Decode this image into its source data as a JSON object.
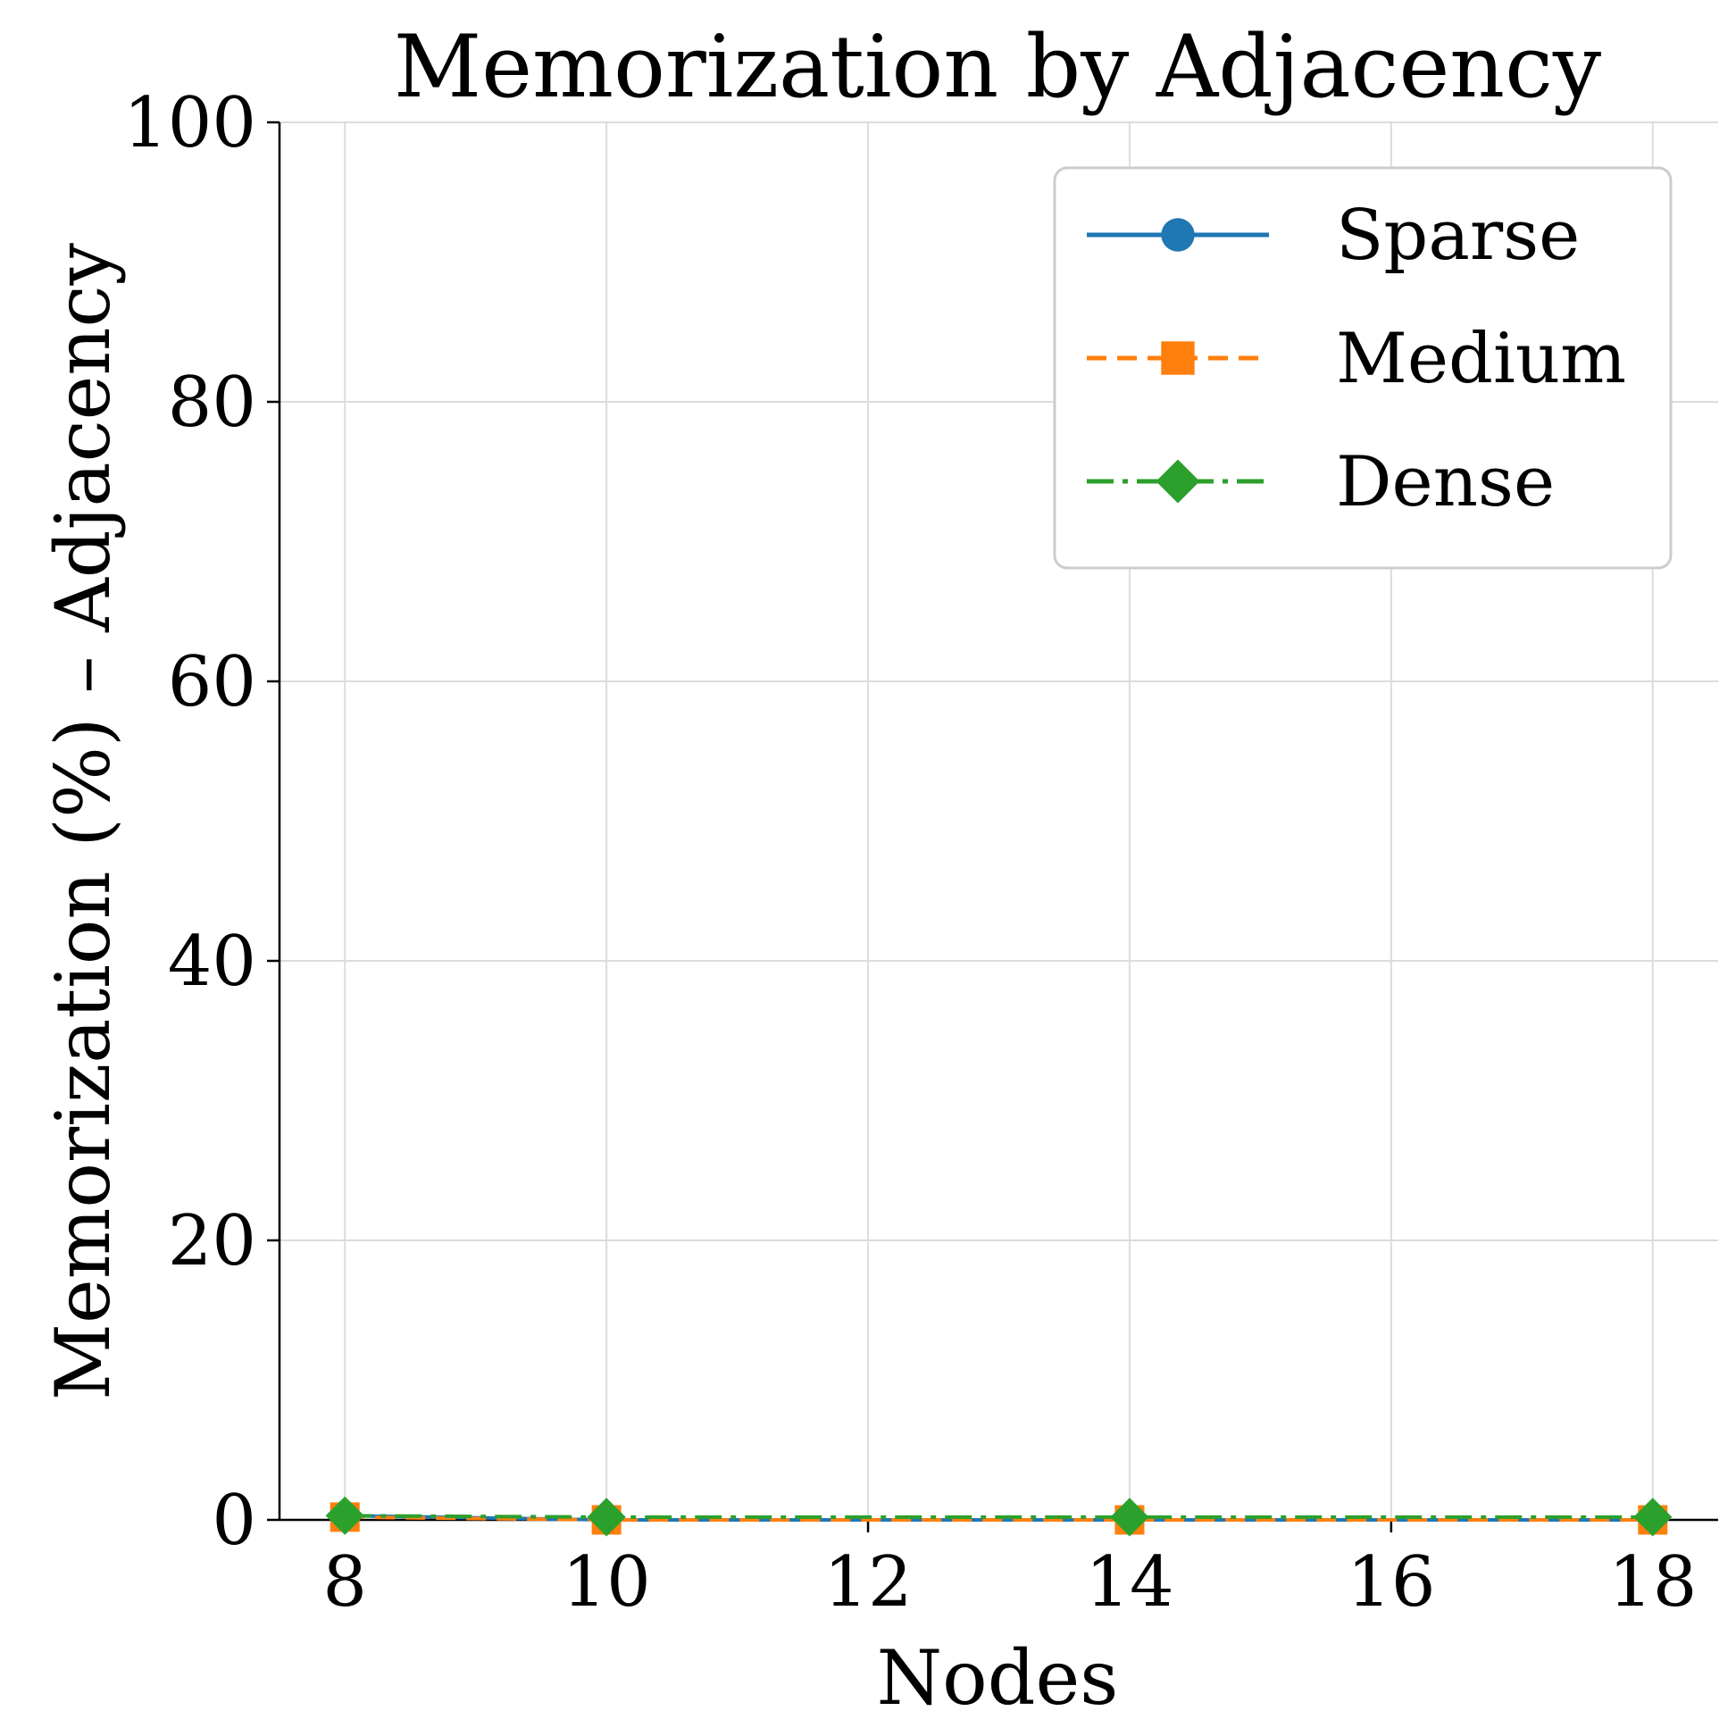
{
  "chart_data": {
    "type": "line",
    "title": "Memorization by Adjacency",
    "xlabel": "Nodes",
    "ylabel": "Memorization (%) – Adjacency",
    "x": [
      8,
      10,
      14,
      18
    ],
    "xticks": [
      8,
      10,
      12,
      14,
      16,
      18
    ],
    "yticks": [
      0,
      20,
      40,
      60,
      80,
      100
    ],
    "xlim": [
      7.5,
      18.5
    ],
    "ylim": [
      0,
      100
    ],
    "grid": true,
    "legend_position": "top-right",
    "series": [
      {
        "name": "Sparse",
        "values": [
          0.3,
          0.0,
          0.0,
          0.0
        ],
        "color": "#1f77b4",
        "linestyle": "solid",
        "marker": "circle"
      },
      {
        "name": "Medium",
        "values": [
          0.2,
          0.0,
          0.0,
          0.0
        ],
        "color": "#ff7f0e",
        "linestyle": "dashed",
        "marker": "square"
      },
      {
        "name": "Dense",
        "values": [
          0.3,
          0.2,
          0.2,
          0.2
        ],
        "color": "#2ca02c",
        "linestyle": "dashdot",
        "marker": "diamond"
      }
    ]
  }
}
